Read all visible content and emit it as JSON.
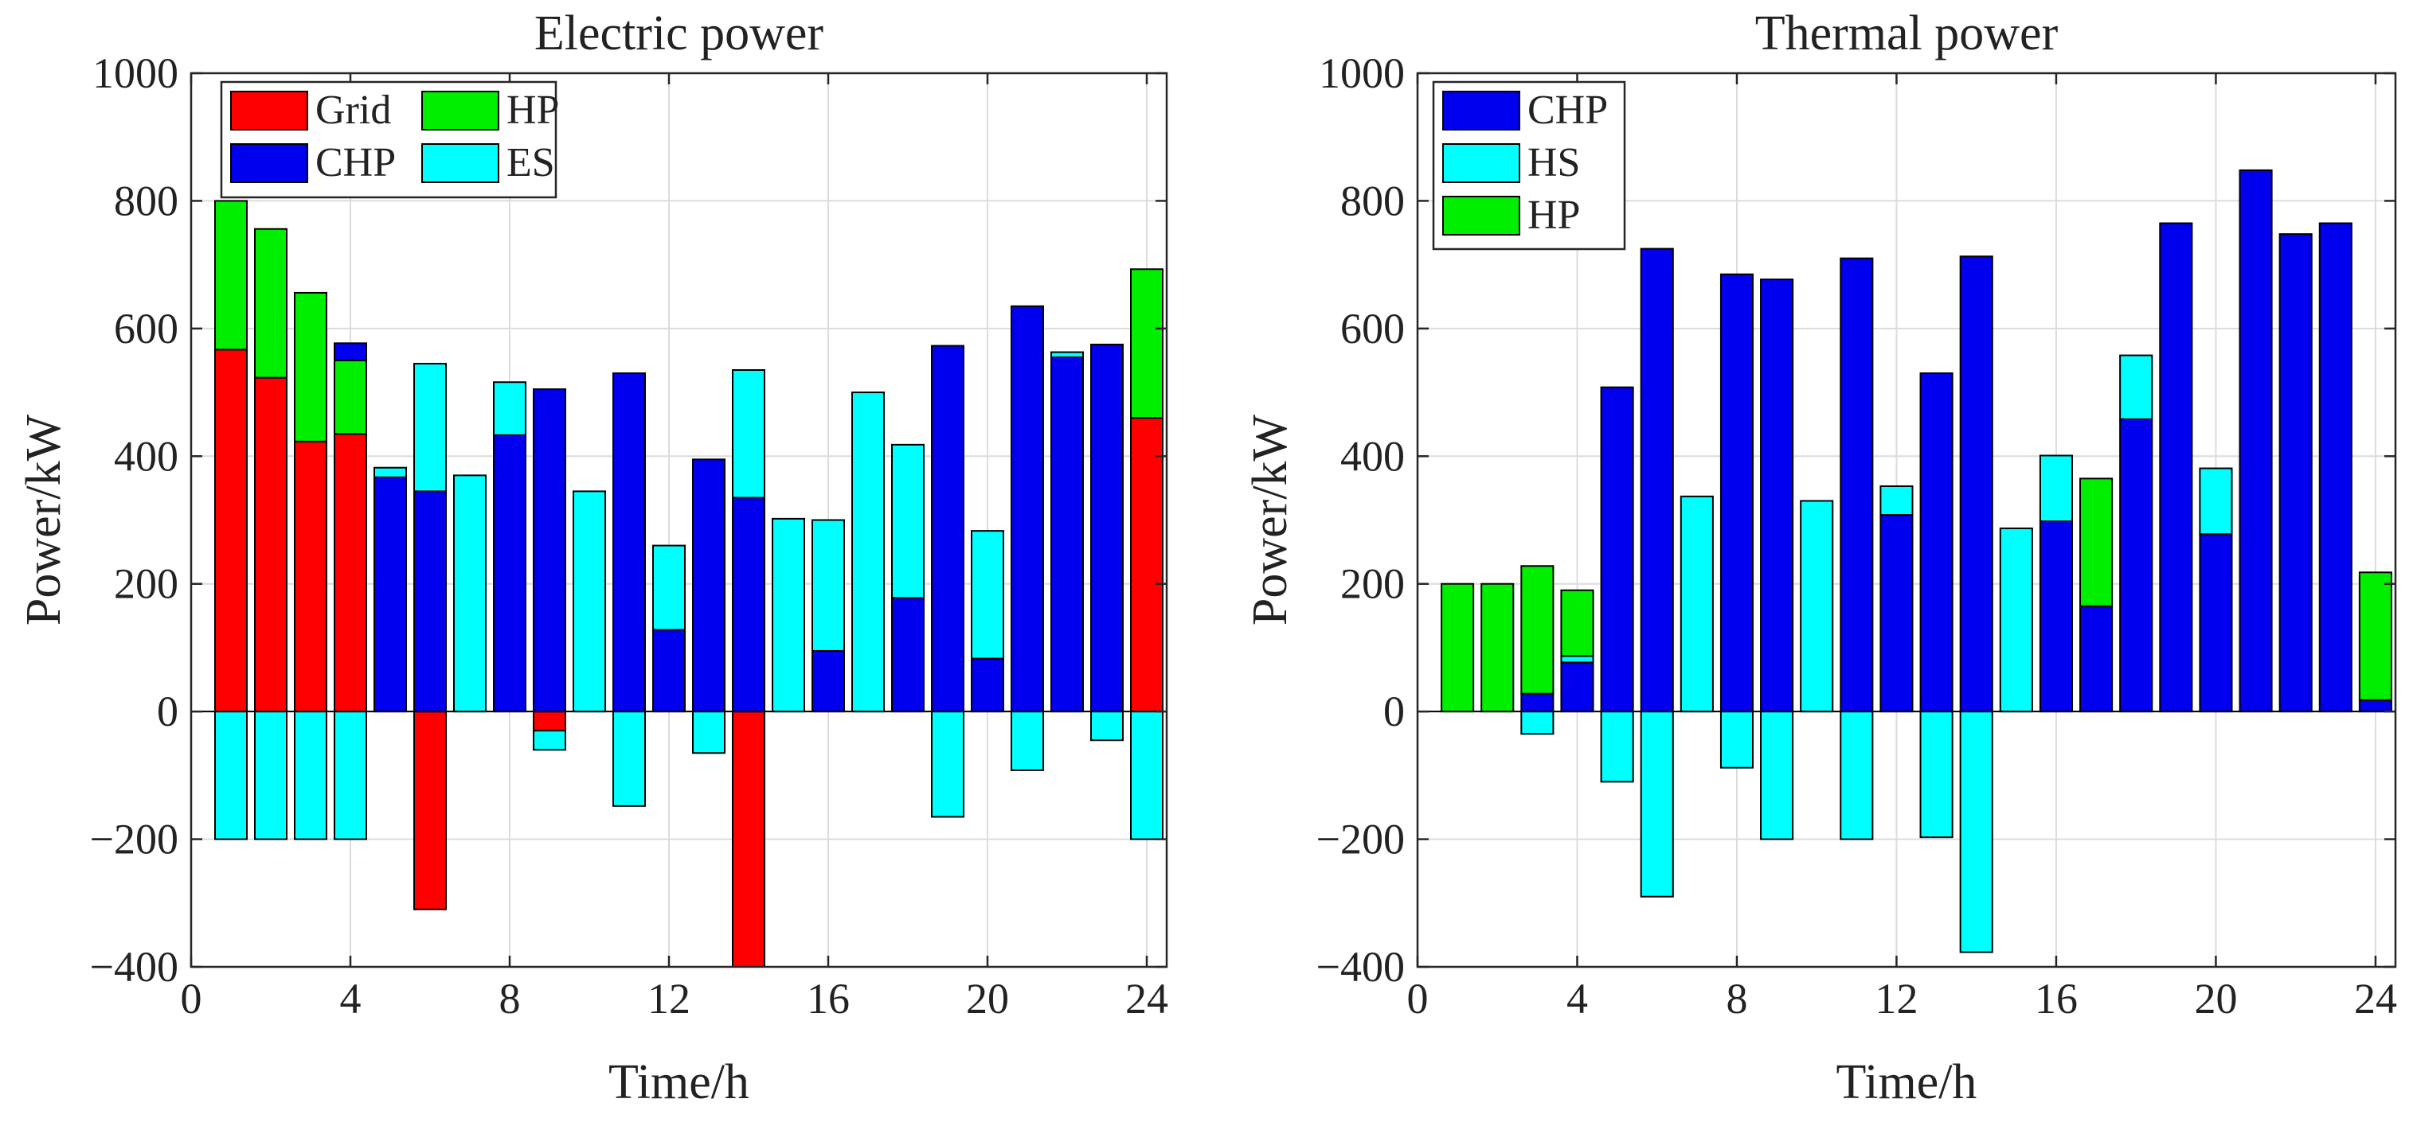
{
  "chart_data": [
    {
      "type": "bar",
      "stacked": true,
      "title": "Electric power",
      "xlabel": "Time/h",
      "ylabel": "Power/kW",
      "xlim": [
        0,
        24.5
      ],
      "ylim": [
        -400,
        1000
      ],
      "xticks": [
        0,
        4,
        8,
        12,
        16,
        20,
        24
      ],
      "yticks": [
        -400,
        -200,
        0,
        200,
        400,
        600,
        800,
        1000
      ],
      "ytick_labels": [
        "−400",
        "−200",
        "0",
        "200",
        "400",
        "600",
        "800",
        "1000"
      ],
      "grid": true,
      "legend_position": "top-left",
      "x": [
        1,
        2,
        3,
        4,
        5,
        6,
        7,
        8,
        9,
        10,
        11,
        12,
        13,
        14,
        15,
        16,
        17,
        18,
        19,
        20,
        21,
        22,
        23,
        24
      ],
      "series": [
        {
          "name": "Grid",
          "color": "#ff0000",
          "values": [
            567,
            523,
            423,
            435,
            0,
            -310,
            0,
            0,
            -30,
            0,
            0,
            0,
            0,
            -400,
            0,
            0,
            0,
            0,
            0,
            0,
            0,
            0,
            0,
            460
          ]
        },
        {
          "name": "HP",
          "color": "#00ee00",
          "values": [
            233,
            233,
            233,
            115,
            0,
            0,
            0,
            0,
            0,
            0,
            0,
            0,
            0,
            0,
            0,
            0,
            0,
            0,
            0,
            0,
            0,
            0,
            0,
            233
          ]
        },
        {
          "name": "CHP",
          "color": "#0000ee",
          "values": [
            0,
            0,
            0,
            27,
            367,
            345,
            0,
            433,
            505,
            0,
            530,
            128,
            395,
            335,
            0,
            95,
            0,
            178,
            573,
            83,
            635,
            555,
            575,
            0
          ]
        },
        {
          "name": "ES",
          "color": "#00ffff",
          "values": [
            -200,
            -200,
            -200,
            -200,
            15,
            200,
            370,
            83,
            -30,
            345,
            -148,
            132,
            -65,
            200,
            302,
            205,
            500,
            240,
            -165,
            200,
            -92,
            8,
            -45,
            -200
          ]
        }
      ]
    },
    {
      "type": "bar",
      "stacked": true,
      "title": "Thermal power",
      "xlabel": "Time/h",
      "ylabel": "Power/kW",
      "xlim": [
        0,
        24.5
      ],
      "ylim": [
        -400,
        1000
      ],
      "xticks": [
        0,
        4,
        8,
        12,
        16,
        20,
        24
      ],
      "yticks": [
        -400,
        -200,
        0,
        200,
        400,
        600,
        800,
        1000
      ],
      "ytick_labels": [
        "−400",
        "−200",
        "0",
        "200",
        "400",
        "600",
        "800",
        "1000"
      ],
      "grid": true,
      "legend_position": "top-left",
      "x": [
        1,
        2,
        3,
        4,
        5,
        6,
        7,
        8,
        9,
        10,
        11,
        12,
        13,
        14,
        15,
        16,
        17,
        18,
        19,
        20,
        21,
        22,
        23,
        24
      ],
      "series": [
        {
          "name": "CHP",
          "color": "#0000ee",
          "values": [
            0,
            0,
            28,
            77,
            508,
            725,
            0,
            685,
            677,
            0,
            710,
            308,
            530,
            713,
            0,
            298,
            165,
            458,
            765,
            278,
            848,
            748,
            765,
            18
          ]
        },
        {
          "name": "HS",
          "color": "#00ffff",
          "values": [
            0,
            0,
            -35,
            10,
            -110,
            -290,
            337,
            -88,
            -200,
            330,
            -200,
            45,
            -197,
            -377,
            287,
            103,
            0,
            100,
            0,
            103,
            0,
            0,
            0,
            0
          ]
        },
        {
          "name": "HP",
          "color": "#00ee00",
          "values": [
            200,
            200,
            200,
            103,
            0,
            0,
            0,
            0,
            0,
            0,
            0,
            0,
            0,
            0,
            0,
            0,
            200,
            0,
            0,
            0,
            0,
            0,
            0,
            200
          ]
        }
      ]
    }
  ]
}
